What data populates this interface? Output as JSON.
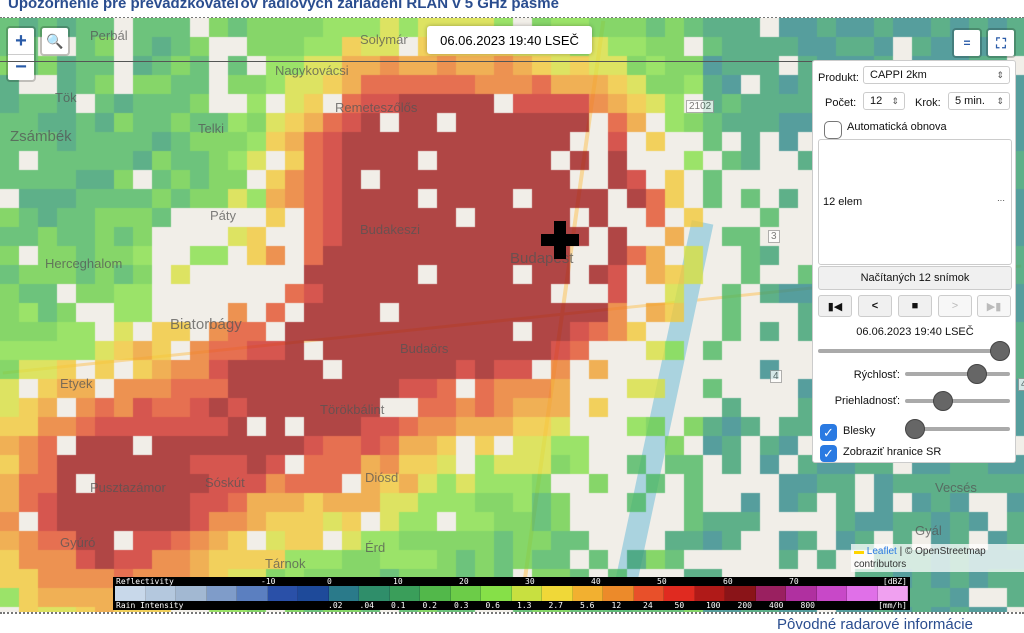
{
  "page_title": "Upozornenie pre prevádzkovateľov rádiových zariadení RLAN v 5 GHz pásme",
  "map": {
    "timestamp": "06.06.2023 19:40 LSEČ",
    "zoom_in": "+",
    "zoom_out": "−",
    "places": [
      "Perbál",
      "Solymár",
      "Nagykovácsi",
      "Tök",
      "Zsámbék",
      "Remeteszőlős",
      "Telki",
      "Páty",
      "Budakeszi",
      "Budapest",
      "Herceghalom",
      "Biatorbágy",
      "Budaörs",
      "Etyek",
      "Törökbálint",
      "Sóskút",
      "Pusztazámor",
      "Diósd",
      "Gyúró",
      "Érd",
      "Tárnok",
      "Vecsés",
      "Gyál"
    ],
    "road_labels": [
      "2102",
      "3",
      "4",
      "4"
    ],
    "marker": "cross-marker"
  },
  "panel": {
    "product_label": "Produkt:",
    "product_value": "CAPPI 2km",
    "count_label": "Počet:",
    "count_value": "12",
    "step_label": "Krok:",
    "step_value": "5 min.",
    "auto_refresh_label": "Automatická obnova",
    "auto_refresh_checked": false,
    "list_item": "12 elem",
    "list_more": "···",
    "loaded_button": "Načítaných 12 snímok",
    "current_time": "06.06.2023 19:40 LSEČ",
    "timeline_position": 1.0,
    "speed_label": "Rýchlosť:",
    "speed_value": 0.75,
    "opacity_label": "Priehladnosť:",
    "opacity_value": 0.4,
    "third_slider_value": 0.0,
    "lightning_label": "Blesky",
    "lightning_checked": true,
    "borders_label": "Zobraziť hranice SR",
    "borders_checked": true
  },
  "legend": {
    "reflectivity_label": "Reflectivity",
    "reflectivity_ticks": [
      "-10",
      "0",
      "10",
      "20",
      "30",
      "40",
      "50",
      "60",
      "70"
    ],
    "reflectivity_unit": "[dBZ]",
    "rain_label": "Rain Intensity",
    "rain_ticks": [
      ".02",
      ".04",
      "0.1",
      "0.2",
      "0.3",
      "0.6",
      "1.3",
      "2.7",
      "5.6",
      "12",
      "24",
      "50",
      "100",
      "200",
      "400",
      "800"
    ],
    "rain_unit": "[mm/h]",
    "colors": [
      "#c8d8ea",
      "#b4c8de",
      "#a2b8d2",
      "#7f9cc9",
      "#5b7fc0",
      "#2a50a8",
      "#1e4a9a",
      "#2a7a8a",
      "#2f8e6a",
      "#3a9e5a",
      "#52b84a",
      "#6ccc48",
      "#86e048",
      "#c8e040",
      "#f0d838",
      "#f2b030",
      "#ec8a2a",
      "#e8502a",
      "#e02a20",
      "#b01a18",
      "#8a1418",
      "#9a2060",
      "#b030a0",
      "#c848c8",
      "#e070e8",
      "#f0a0f0"
    ]
  },
  "attribution": {
    "leaflet": "Leaflet",
    "rest": "| © OpenStreetmap contributors"
  },
  "bottom_link": "Pôvodné radarové informácie"
}
